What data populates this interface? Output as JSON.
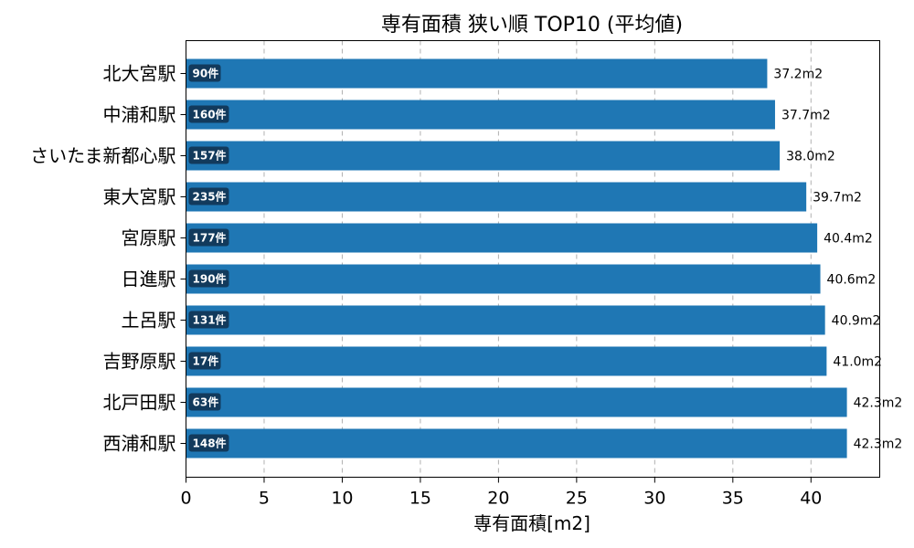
{
  "chart_data": {
    "type": "bar",
    "orientation": "horizontal",
    "title": "専有面積 狭い順 TOP10 (平均値)",
    "xlabel": "専有面積[m2]",
    "ylabel": "",
    "xlim": [
      0,
      44.4
    ],
    "xticks": [
      0,
      5,
      10,
      15,
      20,
      25,
      30,
      35,
      40
    ],
    "grid": "x-dashed",
    "categories": [
      "北大宮駅",
      "中浦和駅",
      "さいたま新都心駅",
      "東大宮駅",
      "宮原駅",
      "日進駅",
      "土呂駅",
      "吉野原駅",
      "北戸田駅",
      "西浦和駅"
    ],
    "values": [
      37.2,
      37.7,
      38.0,
      39.7,
      40.4,
      40.6,
      40.9,
      41.0,
      42.3,
      42.3
    ],
    "value_labels": [
      "37.2m2",
      "37.7m2",
      "38.0m2",
      "39.7m2",
      "40.4m2",
      "40.6m2",
      "40.9m2",
      "41.0m2",
      "42.3m2",
      "42.3m2"
    ],
    "counts": [
      "90件",
      "160件",
      "157件",
      "235件",
      "177件",
      "190件",
      "131件",
      "17件",
      "63件",
      "148件"
    ],
    "colors": {
      "bar": "#1f77b4",
      "count_badge": "#123a5c"
    }
  }
}
